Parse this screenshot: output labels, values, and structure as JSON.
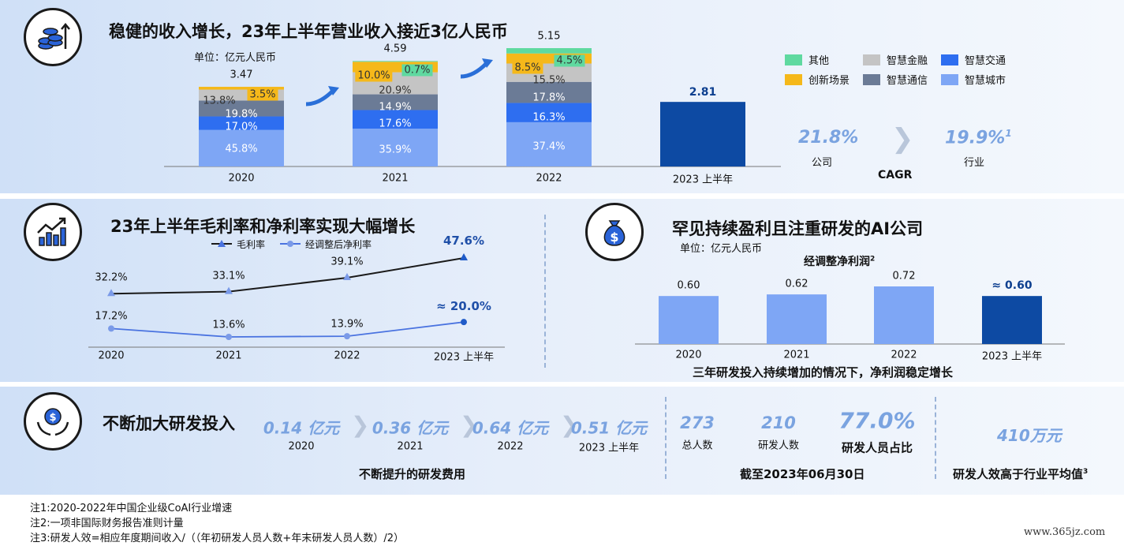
{
  "top": {
    "title": "稳健的收入增长，23年上半年营业收入接近3亿人民币",
    "unit": "单位：亿元人民币",
    "legend": [
      {
        "name": "其他",
        "color": "#5fd9a0"
      },
      {
        "name": "智慧金融",
        "color": "#c4c4c4"
      },
      {
        "name": "智慧交通",
        "color": "#2e6ef0"
      },
      {
        "name": "创新场景",
        "color": "#f5b81a"
      },
      {
        "name": "智慧通信",
        "color": "#6b7b96"
      },
      {
        "name": "智慧城市",
        "color": "#7ea6f5"
      }
    ],
    "cagr": {
      "company_value": "21.8%",
      "company_label": "公司",
      "industry_value": "19.9%",
      "industry_sup": "1",
      "industry_label": "行业",
      "label": "CAGR"
    }
  },
  "chart_data": [
    {
      "type": "bar",
      "subtype": "stacked",
      "categories": [
        "2020",
        "2021",
        "2022",
        "2023 上半年"
      ],
      "totals": [
        "3.47",
        "4.59",
        "5.15",
        "2.81"
      ],
      "series": [
        {
          "name": "智慧城市",
          "values": [
            45.8,
            35.9,
            37.4,
            null
          ],
          "labels": [
            "45.8%",
            "35.9%",
            "37.4%",
            ""
          ]
        },
        {
          "name": "智慧交通",
          "values": [
            17.0,
            17.6,
            16.3,
            null
          ],
          "labels": [
            "17.0%",
            "17.6%",
            "16.3%",
            ""
          ]
        },
        {
          "name": "智慧通信",
          "values": [
            19.8,
            14.9,
            17.8,
            null
          ],
          "labels": [
            "19.8%",
            "14.9%",
            "17.8%",
            ""
          ]
        },
        {
          "name": "智慧金融",
          "values": [
            13.8,
            20.9,
            15.5,
            null
          ],
          "labels": [
            "13.8%",
            "20.9%",
            "15.5%",
            ""
          ]
        },
        {
          "name": "创新场景",
          "values": [
            3.5,
            10.0,
            8.5,
            null
          ],
          "labels": [
            "3.5%",
            "10.0%",
            "8.5%",
            ""
          ]
        },
        {
          "name": "其他",
          "values": [
            0,
            0.7,
            4.5,
            null
          ],
          "labels": [
            "",
            "0.7%",
            "4.5%",
            ""
          ]
        }
      ],
      "values": [
        3.47,
        4.59,
        5.15,
        2.81
      ]
    },
    {
      "type": "line",
      "title": "23年上半年毛利率和净利率实现大幅增长",
      "categories": [
        "2020",
        "2021",
        "2022",
        "2023 上半年"
      ],
      "series": [
        {
          "name": "毛利率",
          "values": [
            32.2,
            33.1,
            39.1,
            47.6
          ],
          "labels": [
            "32.2%",
            "33.1%",
            "39.1%",
            "47.6%"
          ],
          "color": "#1a1a1a"
        },
        {
          "name": "经调整后净利率",
          "values": [
            17.2,
            13.6,
            13.9,
            20.0
          ],
          "labels": [
            "17.2%",
            "13.6%",
            "13.9%",
            "≈ 20.0%"
          ],
          "color": "#4a73e0"
        }
      ]
    },
    {
      "type": "bar",
      "title": "罕见持续盈利且注重研发的AI公司",
      "unit": "单位：亿元人民币",
      "subtitle": "经调整净利润",
      "subtitle_sup": "2",
      "categories": [
        "2020",
        "2021",
        "2022",
        "2023 上半年"
      ],
      "values": [
        0.6,
        0.62,
        0.72,
        0.6
      ],
      "labels": [
        "0.60",
        "0.62",
        "0.72",
        "≈ 0.60"
      ],
      "caption": "三年研发投入持续增加的情况下，净利润稳定增长"
    }
  ],
  "bottom": {
    "title": "不断加大研发投入",
    "rd": [
      {
        "value": "0.14 亿元",
        "year": "2020"
      },
      {
        "value": "0.36 亿元",
        "year": "2021"
      },
      {
        "value": "0.64 亿元",
        "year": "2022"
      },
      {
        "value": "0.51 亿元",
        "year": "2023 上半年"
      }
    ],
    "rd_caption": "不断提升的研发费用",
    "staff": [
      {
        "value": "273",
        "label": "总人数"
      },
      {
        "value": "210",
        "label": "研发人数"
      },
      {
        "value": "77.0%",
        "label": "研发人员占比"
      }
    ],
    "staff_caption": "截至2023年06月30日",
    "efficiency_value": "410万元",
    "efficiency_caption": "研发人效高于行业平均值",
    "efficiency_sup": "3"
  },
  "footnotes": [
    "注1:2020-2022年中国企业级CoAI行业增速",
    "注2:一项非国际财务报告准则计量",
    "注3:研发人效=相应年度期间收入/（（年初研发人员人数+年末研发人员人数）/2）"
  ],
  "watermark": "www.365jz.com"
}
